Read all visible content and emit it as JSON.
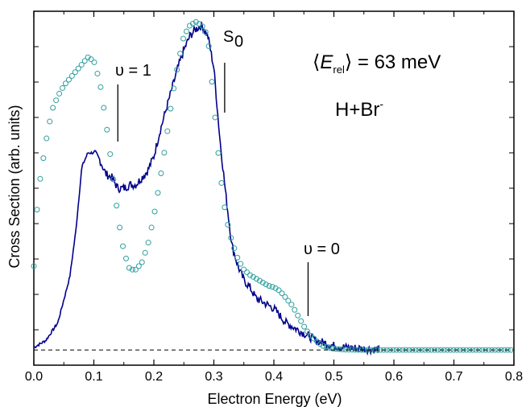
{
  "chart_data": {
    "type": "scatter+line",
    "xlabel": "Electron Energy (eV)",
    "ylabel": "Cross Section (arb. units)",
    "xlim": [
      0.0,
      0.8
    ],
    "ylim": [
      0.0,
      1.0
    ],
    "x_ticks": [
      "0.0",
      "0.1",
      "0.2",
      "0.3",
      "0.4",
      "0.5",
      "0.6",
      "0.7",
      "0.8"
    ],
    "baseline_y": 0.043,
    "colors": {
      "line": "#00008B",
      "circles": "#2F9F9F",
      "axis": "#000000"
    },
    "annotations": {
      "v1": {
        "text": "υ = 1",
        "x": 0.14
      },
      "s0": {
        "main": "S",
        "sub": "0",
        "x": 0.318
      },
      "v0": {
        "text": "υ = 0",
        "x": 0.457
      },
      "erel": {
        "left": "⟨",
        "E": "E",
        "sub": "rel",
        "right": "⟩",
        "rest": " = 63 meV"
      },
      "reaction": {
        "main": "H+Br",
        "sup": "-"
      }
    },
    "series_line": {
      "x": [
        0.0,
        0.02,
        0.04,
        0.06,
        0.07,
        0.08,
        0.09,
        0.1,
        0.11,
        0.12,
        0.13,
        0.14,
        0.15,
        0.16,
        0.17,
        0.18,
        0.19,
        0.2,
        0.21,
        0.22,
        0.23,
        0.24,
        0.25,
        0.26,
        0.27,
        0.28,
        0.29,
        0.3,
        0.31,
        0.32,
        0.33,
        0.34,
        0.35,
        0.36,
        0.37,
        0.38,
        0.39,
        0.4,
        0.41,
        0.42,
        0.43,
        0.44,
        0.45,
        0.46,
        0.47,
        0.48,
        0.49,
        0.5,
        0.52,
        0.54,
        0.56,
        0.575
      ],
      "y": [
        0.05,
        0.07,
        0.12,
        0.25,
        0.38,
        0.56,
        0.6,
        0.6,
        0.58,
        0.54,
        0.53,
        0.5,
        0.5,
        0.51,
        0.51,
        0.53,
        0.55,
        0.59,
        0.66,
        0.72,
        0.78,
        0.84,
        0.89,
        0.93,
        0.95,
        0.96,
        0.93,
        0.84,
        0.64,
        0.48,
        0.34,
        0.28,
        0.24,
        0.22,
        0.19,
        0.18,
        0.17,
        0.16,
        0.14,
        0.12,
        0.11,
        0.1,
        0.09,
        0.08,
        0.07,
        0.065,
        0.06,
        0.055,
        0.05,
        0.048,
        0.045,
        0.045
      ]
    },
    "series_circles": {
      "x_start": 0.0,
      "x_end": 0.8,
      "step": 0.0053,
      "x": [
        0.0,
        0.003,
        0.01,
        0.02,
        0.03,
        0.04,
        0.05,
        0.06,
        0.07,
        0.08,
        0.09,
        0.1,
        0.11,
        0.12,
        0.13,
        0.14,
        0.15,
        0.16,
        0.17,
        0.18,
        0.19,
        0.2,
        0.21,
        0.22,
        0.23,
        0.24,
        0.25,
        0.26,
        0.27,
        0.28,
        0.29,
        0.3,
        0.31,
        0.32,
        0.33,
        0.34,
        0.35,
        0.36,
        0.37,
        0.38,
        0.39,
        0.4,
        0.41,
        0.42,
        0.43,
        0.44,
        0.45,
        0.46,
        0.48,
        0.5,
        0.52,
        0.55,
        0.6,
        0.7,
        0.8
      ],
      "y": [
        0.28,
        0.4,
        0.52,
        0.63,
        0.72,
        0.76,
        0.79,
        0.81,
        0.83,
        0.85,
        0.87,
        0.86,
        0.8,
        0.69,
        0.56,
        0.42,
        0.32,
        0.27,
        0.27,
        0.29,
        0.34,
        0.42,
        0.52,
        0.63,
        0.75,
        0.85,
        0.93,
        0.96,
        0.97,
        0.96,
        0.93,
        0.74,
        0.55,
        0.42,
        0.35,
        0.3,
        0.27,
        0.255,
        0.245,
        0.235,
        0.225,
        0.22,
        0.21,
        0.19,
        0.17,
        0.14,
        0.11,
        0.085,
        0.055,
        0.046,
        0.044,
        0.043,
        0.043,
        0.043,
        0.043
      ]
    }
  }
}
